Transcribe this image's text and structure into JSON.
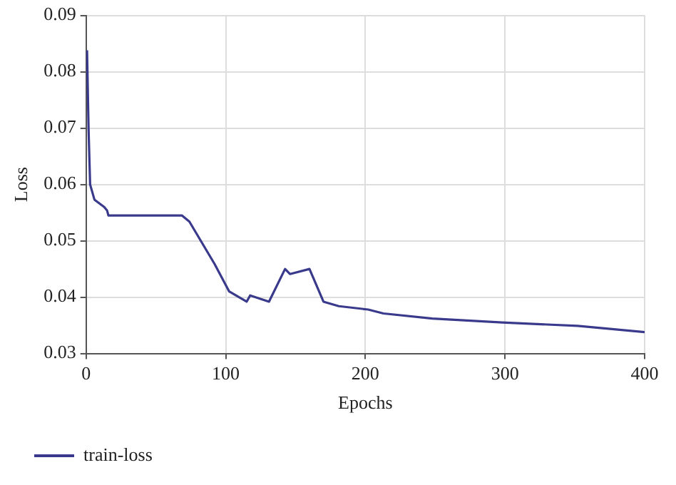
{
  "chart_data": {
    "type": "line",
    "xlabel": "Epochs",
    "ylabel": "Loss",
    "xlim": [
      0,
      400
    ],
    "xticks": [
      0,
      100,
      200,
      300,
      400
    ],
    "ylim": [
      0.03,
      0.09
    ],
    "yticks": [
      0.03,
      0.04,
      0.05,
      0.06,
      0.07,
      0.08,
      0.09
    ],
    "grid": true,
    "legend": "bottom",
    "marker": "none",
    "line_style": "solid",
    "series": [
      {
        "name": "train-loss",
        "color": "#3a3a8c",
        "x": [
          0.7,
          1.8,
          2.9,
          6,
          13,
          15,
          16,
          68.6,
          74,
          92,
          102.5,
          115,
          117.5,
          131,
          142.5,
          146,
          160,
          170,
          181,
          202,
          213,
          248,
          298,
          352,
          400
        ],
        "values": [
          0.0838,
          0.0697,
          0.06,
          0.0573,
          0.056,
          0.0554,
          0.0545,
          0.0545,
          0.0534,
          0.0459,
          0.041,
          0.0392,
          0.0403,
          0.0392,
          0.045,
          0.0441,
          0.045,
          0.0392,
          0.0384,
          0.0378,
          0.0371,
          0.0362,
          0.0355,
          0.0349,
          0.0338
        ]
      }
    ]
  }
}
